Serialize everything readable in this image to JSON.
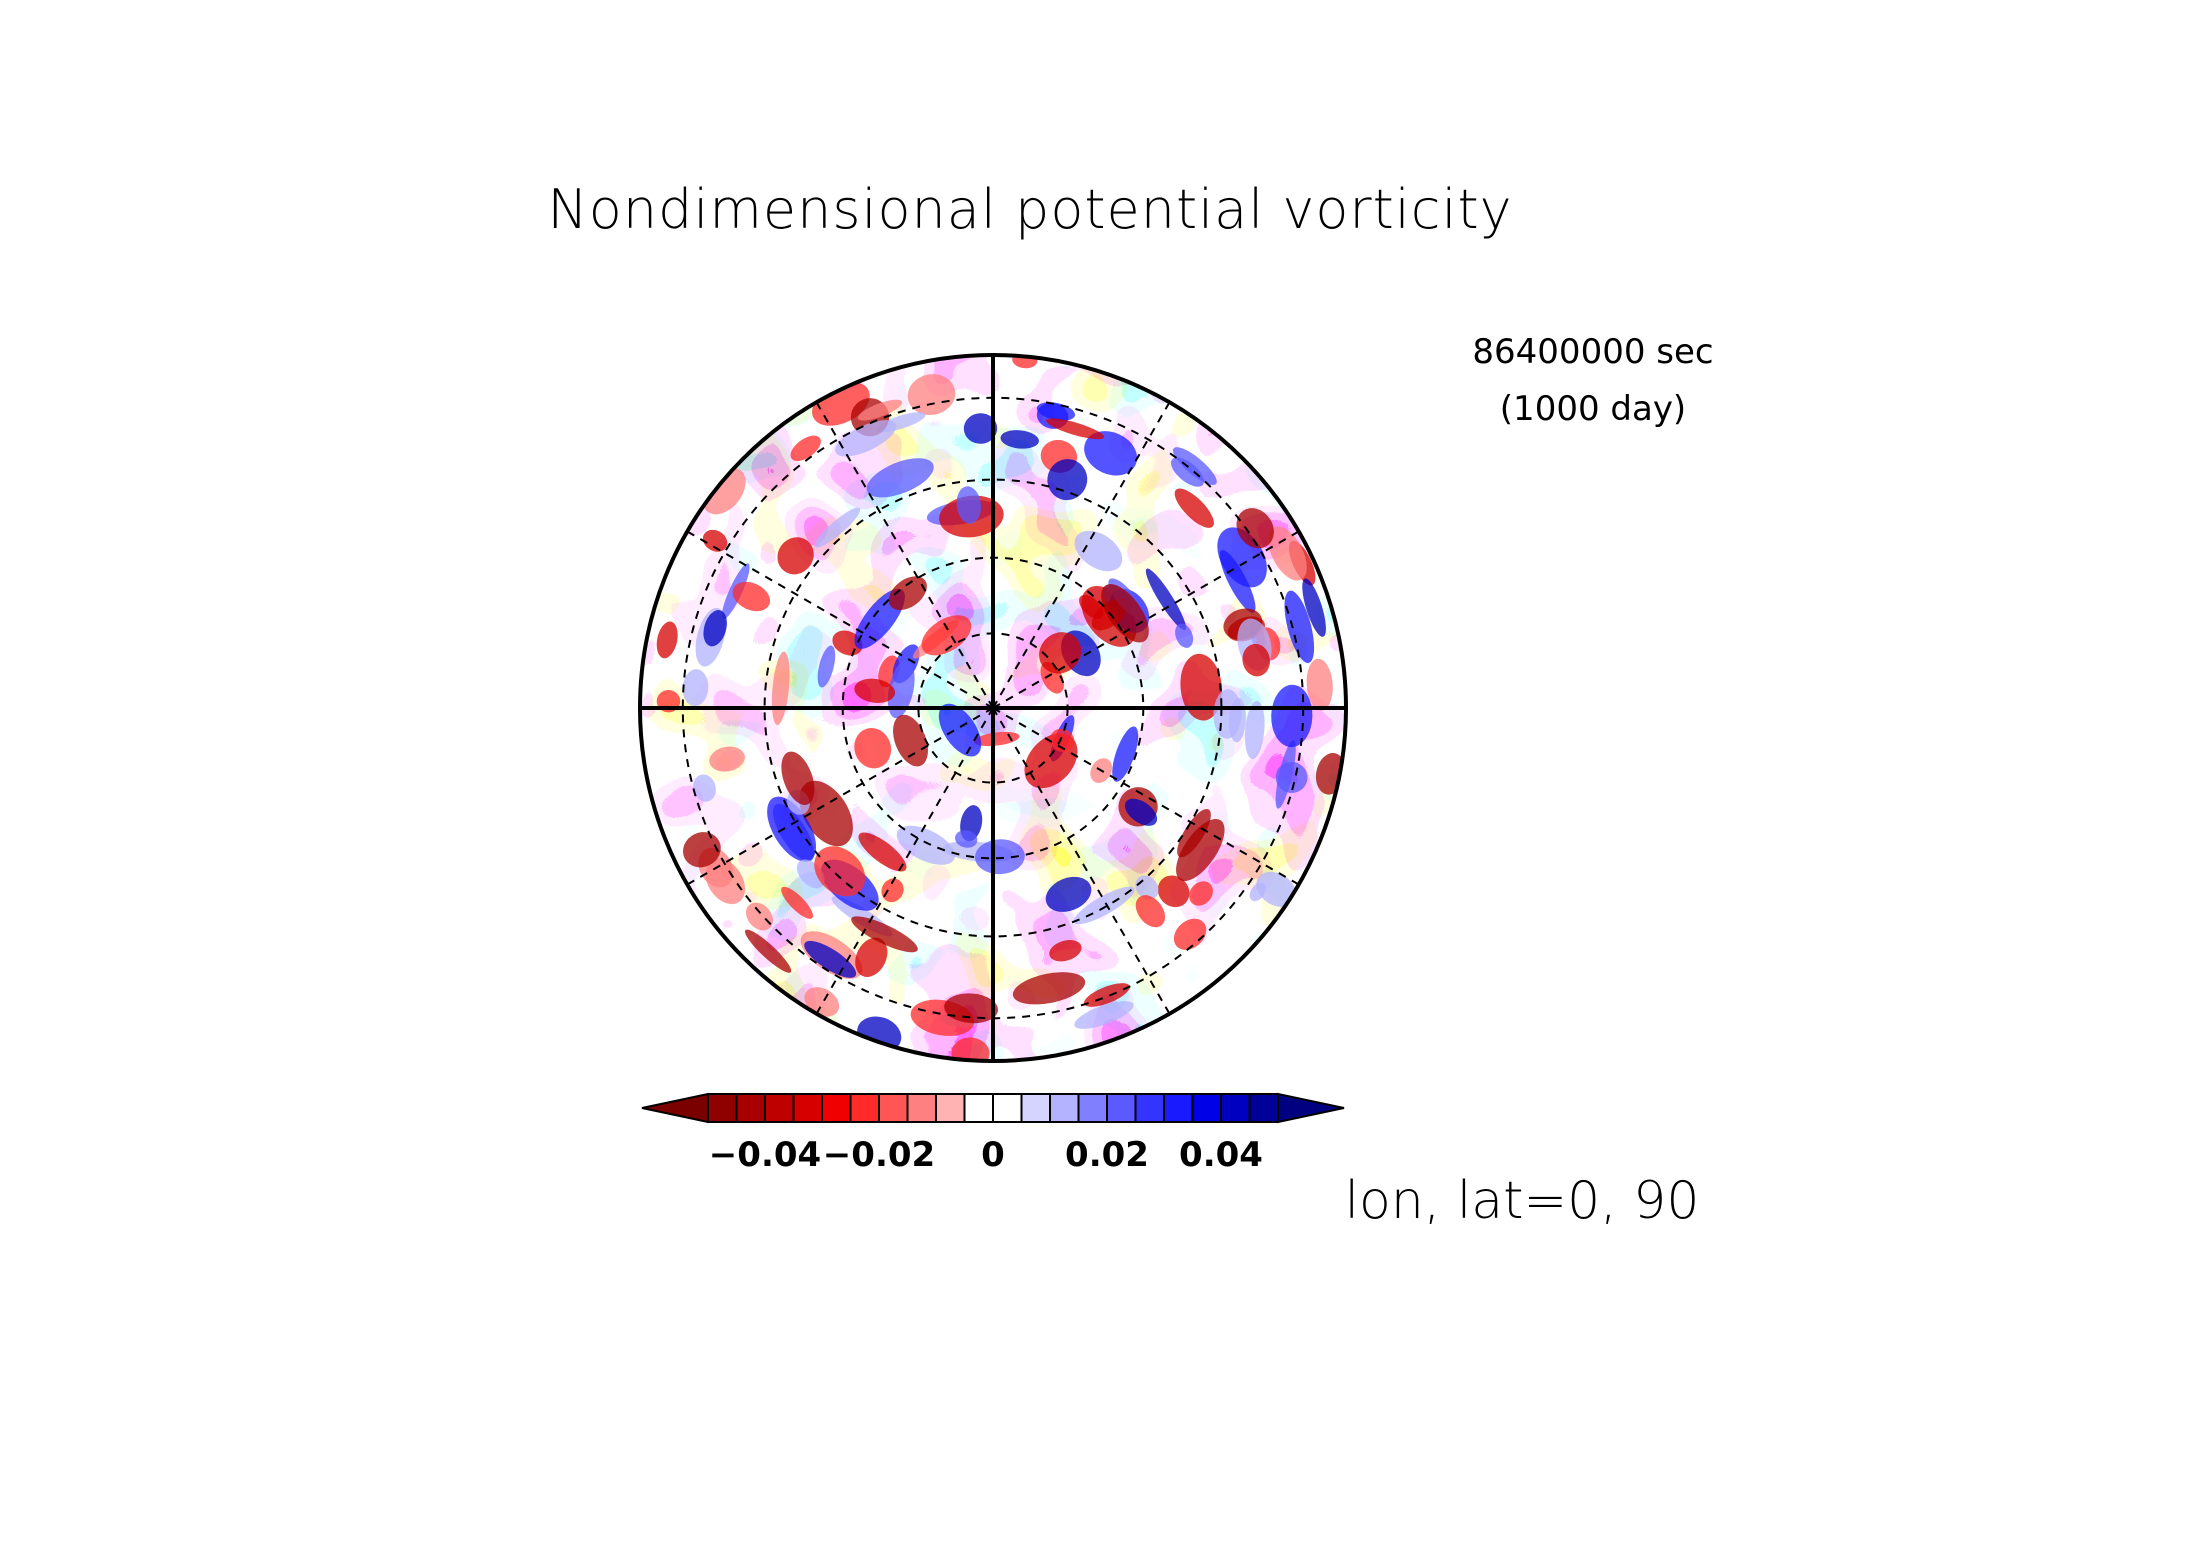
{
  "chart_data": {
    "type": "heatmap",
    "projection": "polar-stereographic",
    "title": "Nondimensional potential vorticity",
    "time": {
      "seconds_label": "86400000 sec",
      "days_label": "(1000 day)"
    },
    "coordinate_label": "lon, lat=0, 90",
    "center": {
      "lon": 0,
      "lat": 90
    },
    "grid": {
      "latitude_circles_deg": [
        80,
        70,
        60,
        50
      ],
      "meridians_deg": [
        0,
        30,
        60,
        90,
        120,
        150,
        180,
        210,
        240,
        270,
        300,
        330
      ],
      "solid_meridians_deg": [
        0,
        90,
        180,
        270
      ],
      "edge_latitude_deg": 45
    },
    "colorbar": {
      "levels": [
        -0.05,
        -0.045,
        -0.04,
        -0.035,
        -0.03,
        -0.025,
        -0.02,
        -0.015,
        -0.01,
        -0.005,
        0,
        0.005,
        0.01,
        0.015,
        0.02,
        0.025,
        0.03,
        0.035,
        0.04,
        0.045,
        0.05
      ],
      "ticks": [
        -0.04,
        -0.02,
        0,
        0.02,
        0.04
      ],
      "tick_labels": [
        "−0.04",
        "−0.02",
        "0",
        "0.02",
        "0.04"
      ],
      "extend": "both",
      "colors": [
        "#7a0000",
        "#8f0000",
        "#a80000",
        "#bf0000",
        "#d60000",
        "#f00000",
        "#ff2a2a",
        "#ff5555",
        "#ff8080",
        "#ffb3b3",
        "#ffffff",
        "#ffffff",
        "#d4d4ff",
        "#b3b3ff",
        "#8080ff",
        "#5a5aff",
        "#3434ff",
        "#1a1aff",
        "#0000e6",
        "#0000c0",
        "#000099",
        "#000080"
      ]
    },
    "range": [
      -0.05,
      0.05
    ]
  }
}
